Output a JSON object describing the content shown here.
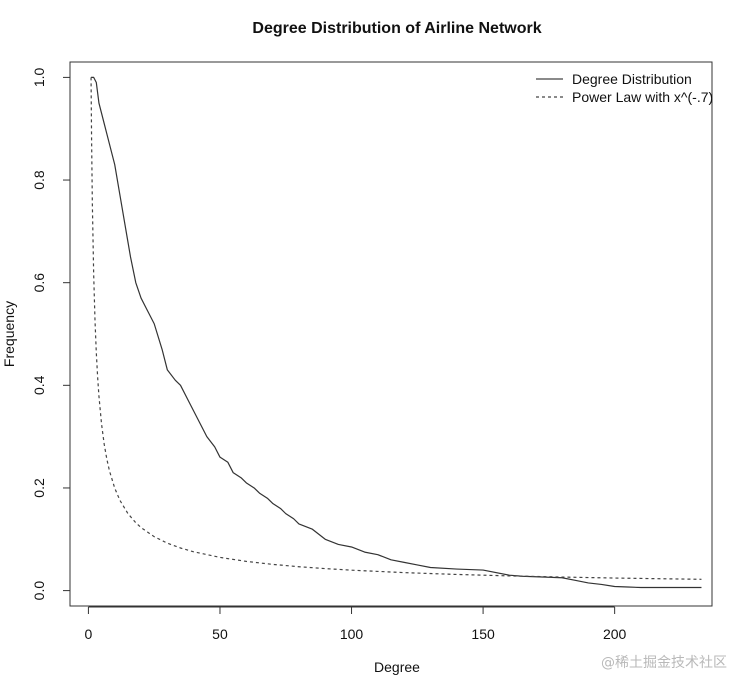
{
  "chart_data": {
    "type": "line",
    "title": "Degree Distribution of Airline Network",
    "xlabel": "Degree",
    "ylabel": "Frequency",
    "xlim": [
      -7,
      237
    ],
    "ylim": [
      -0.03,
      1.03
    ],
    "xticks": [
      0,
      50,
      100,
      150,
      200
    ],
    "yticks": [
      0.0,
      0.2,
      0.4,
      0.6,
      0.8,
      1.0
    ],
    "legend_position": "top-right",
    "series": [
      {
        "name": "Degree Distribution",
        "style": "solid",
        "color": "#333333",
        "x": [
          1,
          2,
          3,
          4,
          5,
          6,
          8,
          10,
          12,
          14,
          16,
          18,
          20,
          22,
          25,
          28,
          30,
          33,
          35,
          38,
          40,
          43,
          45,
          48,
          50,
          53,
          55,
          58,
          60,
          63,
          65,
          68,
          70,
          73,
          75,
          78,
          80,
          85,
          90,
          95,
          100,
          105,
          110,
          115,
          120,
          125,
          130,
          140,
          150,
          160,
          165,
          170,
          175,
          180,
          185,
          190,
          195,
          200,
          205,
          210,
          220,
          233
        ],
        "y": [
          1.0,
          1.0,
          0.99,
          0.95,
          0.93,
          0.91,
          0.87,
          0.83,
          0.77,
          0.71,
          0.65,
          0.6,
          0.57,
          0.55,
          0.52,
          0.47,
          0.43,
          0.41,
          0.4,
          0.37,
          0.35,
          0.32,
          0.3,
          0.28,
          0.26,
          0.25,
          0.23,
          0.22,
          0.21,
          0.2,
          0.19,
          0.18,
          0.17,
          0.16,
          0.15,
          0.14,
          0.13,
          0.12,
          0.1,
          0.09,
          0.085,
          0.075,
          0.07,
          0.06,
          0.055,
          0.05,
          0.045,
          0.042,
          0.04,
          0.03,
          0.028,
          0.027,
          0.026,
          0.025,
          0.02,
          0.015,
          0.012,
          0.008,
          0.007,
          0.006,
          0.006,
          0.006
        ]
      },
      {
        "name": "Power Law with x^(-.7)",
        "style": "dashed",
        "color": "#444444",
        "x": [
          1,
          1.2,
          1.5,
          2,
          2.5,
          3,
          3.5,
          4,
          5,
          6,
          7,
          8,
          10,
          12,
          15,
          18,
          20,
          25,
          30,
          35,
          40,
          50,
          60,
          70,
          80,
          90,
          100,
          120,
          140,
          160,
          180,
          200,
          220,
          233
        ],
        "y_formula": "x^-0.7"
      }
    ]
  },
  "watermark": "@稀土掘金技术社区"
}
